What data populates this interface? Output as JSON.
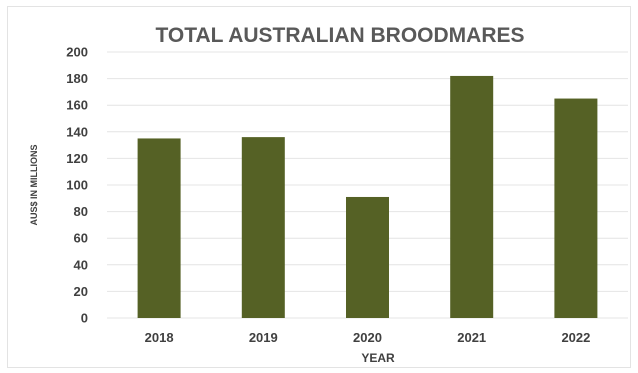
{
  "chart_data": {
    "type": "bar",
    "title": "TOTAL AUSTRALIAN BROODMARES",
    "xlabel": "YEAR",
    "ylabel": "AUS$ IN MILLIONS",
    "categories": [
      "2018",
      "2019",
      "2020",
      "2021",
      "2022"
    ],
    "values": [
      135,
      136,
      91,
      182,
      165
    ],
    "ylim": [
      0,
      200
    ],
    "yticks": [
      0,
      20,
      40,
      60,
      80,
      100,
      120,
      140,
      160,
      180,
      200
    ],
    "grid": true,
    "legend": "none",
    "bar_color": "#556125",
    "grid_color": "#e4e4e4"
  }
}
